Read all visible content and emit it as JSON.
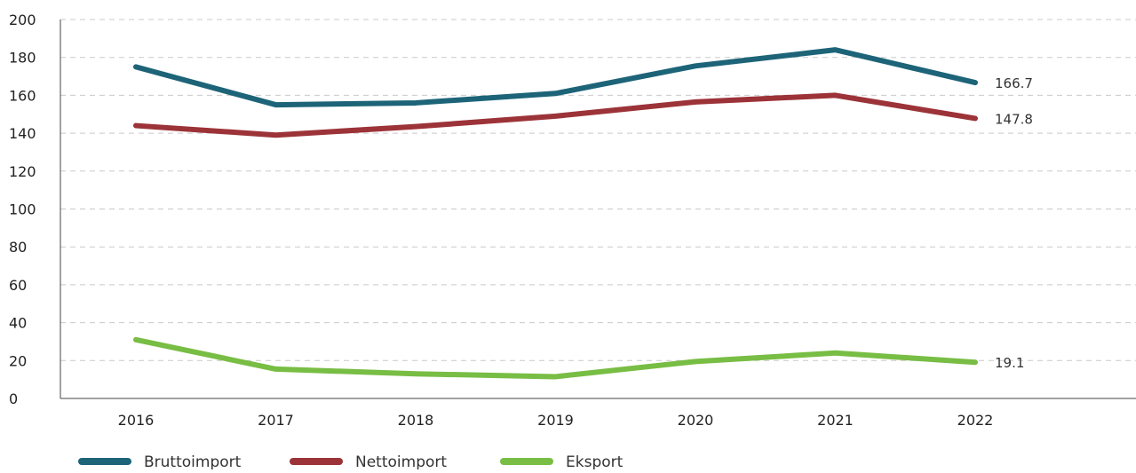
{
  "chart_data": {
    "type": "line",
    "categories": [
      "2016",
      "2017",
      "2018",
      "2019",
      "2020",
      "2021",
      "2022"
    ],
    "ylim": [
      0,
      200
    ],
    "yticks": [
      0,
      20,
      40,
      60,
      80,
      100,
      120,
      140,
      160,
      180,
      200
    ],
    "grid": true,
    "legend_position": "bottom-left",
    "series": [
      {
        "name": "Bruttoimport",
        "color": "#1d6478",
        "values": [
          175,
          155,
          156,
          161,
          175.5,
          184,
          166.7
        ],
        "end_label": "166.7"
      },
      {
        "name": "Nettoimport",
        "color": "#9c3338",
        "values": [
          144,
          139,
          143.5,
          149,
          156.5,
          160,
          147.8
        ],
        "end_label": "147.8"
      },
      {
        "name": "Eksport",
        "color": "#78bd44",
        "values": [
          31,
          15.5,
          13,
          11.5,
          19.5,
          24,
          19.1
        ],
        "end_label": "19.1"
      }
    ]
  }
}
